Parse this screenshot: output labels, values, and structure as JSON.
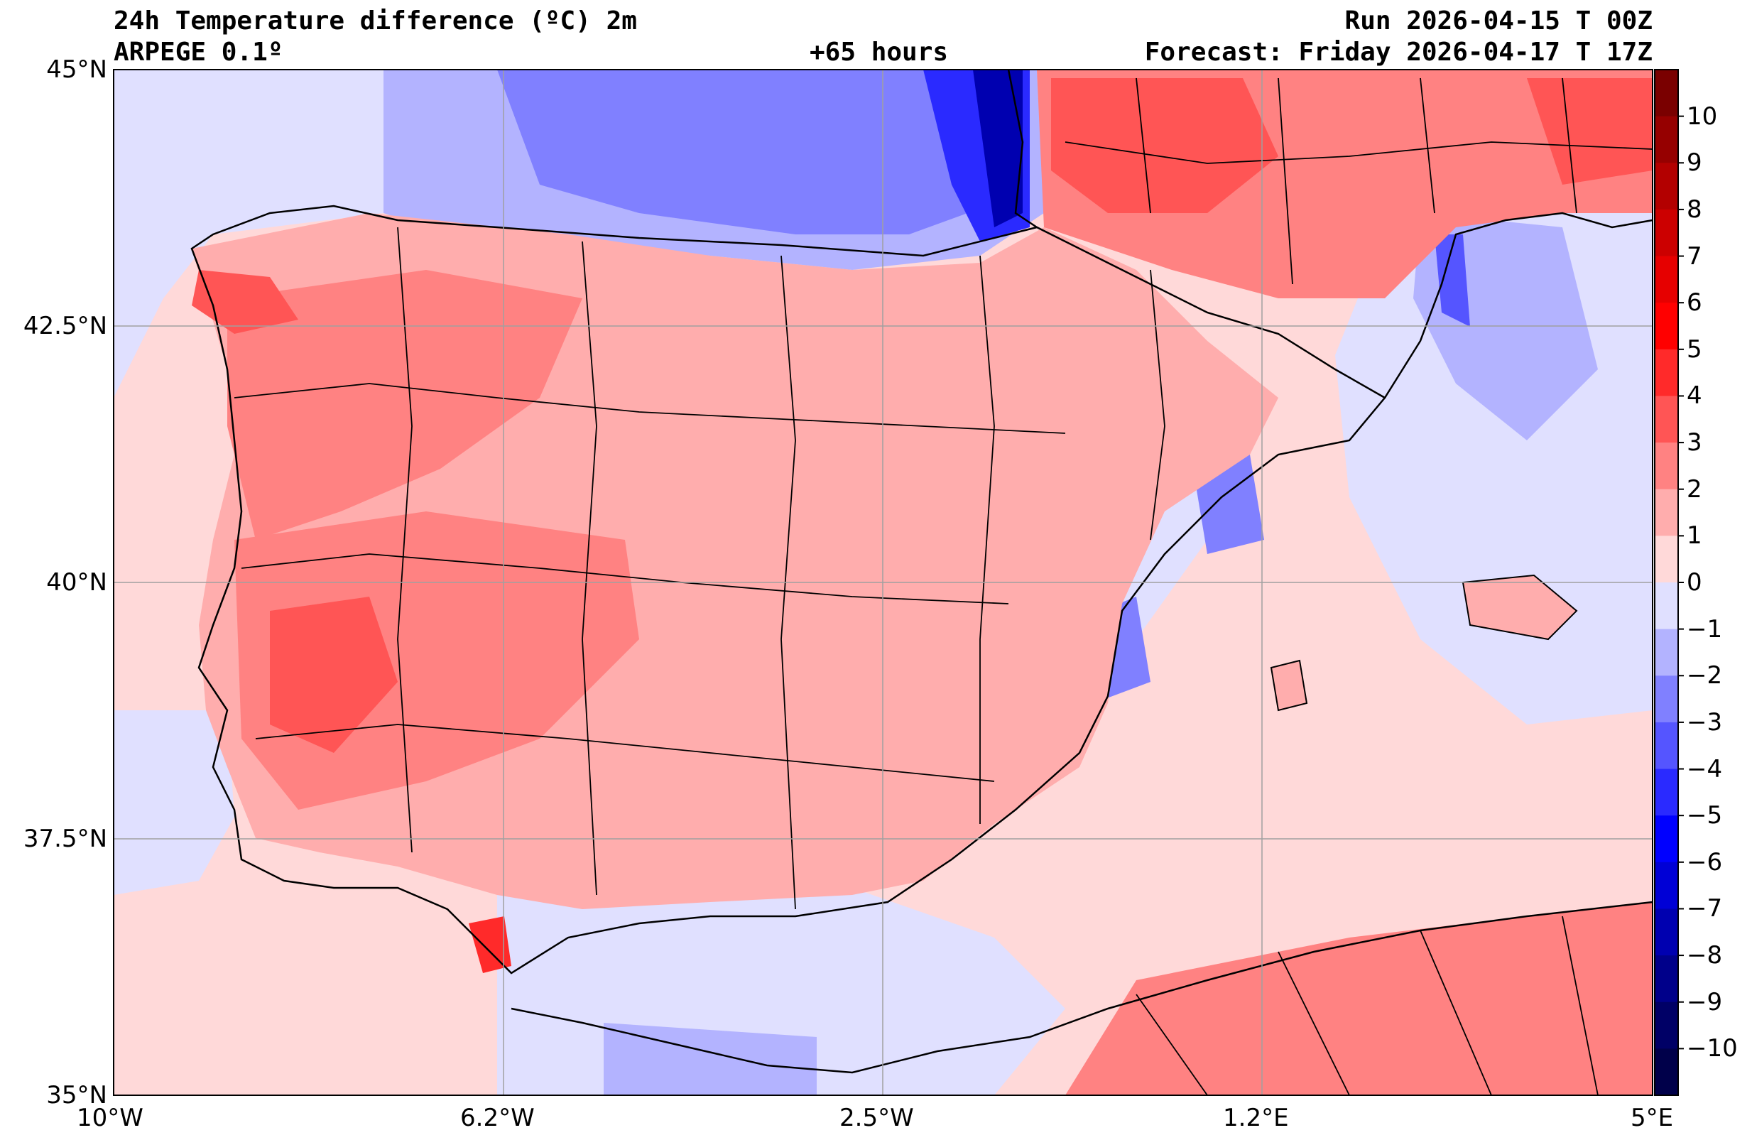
{
  "header": {
    "title": "24h Temperature difference (ºC) 2m",
    "model": "ARPEGE 0.1º",
    "lead_time": "+65 hours",
    "run": "Run 2026-04-15 T 00Z",
    "forecast": "Forecast: Friday 2026-04-17 T 17Z"
  },
  "axes": {
    "lat_labels": [
      "45°N",
      "42.5°N",
      "40°N",
      "37.5°N",
      "35°N"
    ],
    "lon_labels": [
      "10°W",
      "6.2°W",
      "2.5°W",
      "1.2°E",
      "5°E"
    ]
  },
  "colorbar": {
    "labels": [
      "10",
      "9",
      "8",
      "7",
      "6",
      "5",
      "4",
      "3",
      "2",
      "1",
      "0",
      "−1",
      "−2",
      "−3",
      "−4",
      "−5",
      "−6",
      "−7",
      "−8",
      "−9",
      "−10"
    ],
    "colors": [
      "#7a0000",
      "#960000",
      "#b30000",
      "#cc0000",
      "#e60000",
      "#ff0000",
      "#ff2a2a",
      "#ff5555",
      "#ff8282",
      "#ffadad",
      "#ffd9d9",
      "#e0e0ff",
      "#b3b3ff",
      "#8080ff",
      "#5555ff",
      "#2a2aff",
      "#0000ff",
      "#0000d6",
      "#0000b0",
      "#00008a",
      "#000066",
      "#00004a"
    ]
  }
}
